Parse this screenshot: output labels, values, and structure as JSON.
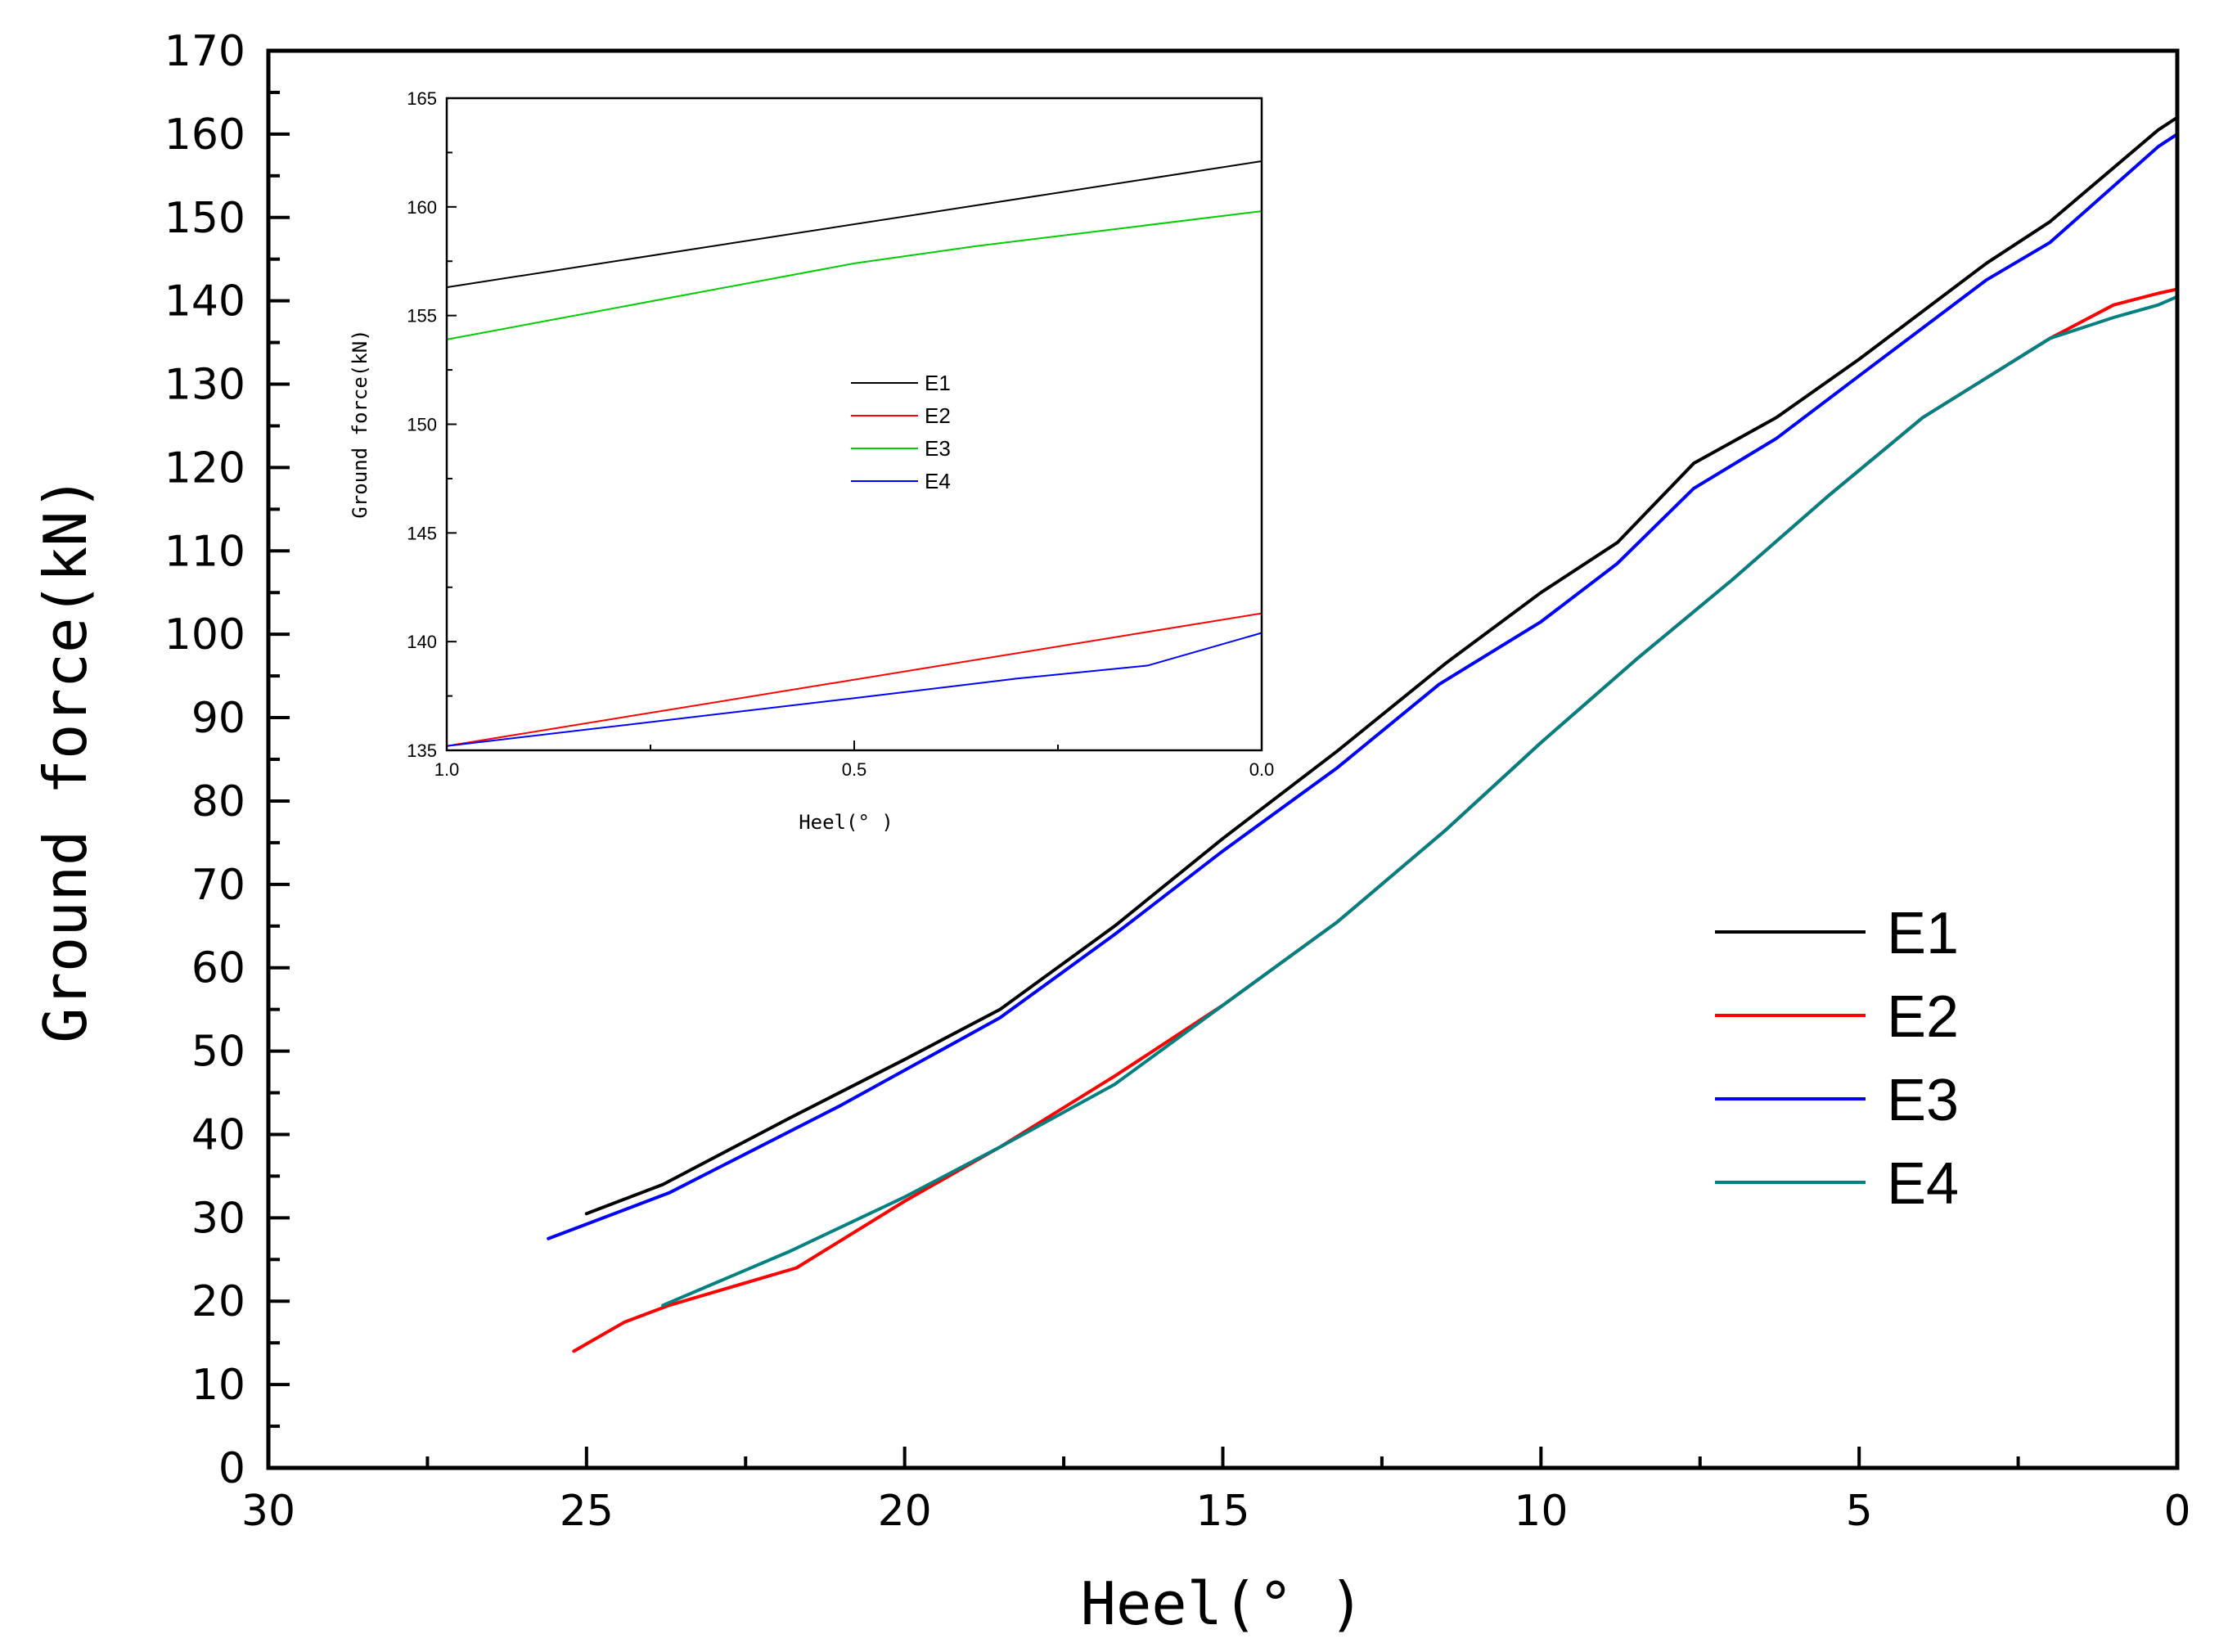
{
  "chart_data": [
    {
      "type": "line",
      "title": "",
      "xlabel": "Heel(° )",
      "ylabel": "Ground force(kN)",
      "xlim": [
        30,
        0
      ],
      "ylim": [
        0,
        170
      ],
      "xticks": [
        30,
        25,
        20,
        15,
        10,
        5,
        0
      ],
      "yticks": [
        0,
        10,
        20,
        30,
        40,
        50,
        60,
        70,
        80,
        90,
        100,
        110,
        120,
        130,
        140,
        150,
        160,
        170
      ],
      "legend_position": "right",
      "series": [
        {
          "name": "E1",
          "color": "#000000",
          "x": [
            25,
            23.8,
            21.8,
            20,
            18.5,
            16.7,
            15,
            13.2,
            11.5,
            10,
            8.8,
            7.6,
            6.3,
            5,
            3,
            2,
            0.3,
            0
          ],
          "y": [
            30.5,
            34,
            42,
            49,
            55,
            65,
            75.5,
            86,
            96.5,
            105,
            111,
            120.5,
            126,
            133,
            144.5,
            149.5,
            160.5,
            162
          ]
        },
        {
          "name": "E2",
          "color": "#ff0000",
          "x": [
            25.2,
            24.4,
            23.7,
            21.7,
            20,
            18.5,
            16.7,
            15,
            13.2,
            11.5,
            10,
            8.5,
            7,
            5.5,
            4,
            2,
            1,
            0.3,
            0
          ],
          "y": [
            14,
            17.5,
            19.5,
            24,
            32,
            38.5,
            47,
            55.5,
            65.5,
            76.5,
            87,
            97,
            106.5,
            116.5,
            126,
            135.5,
            139.5,
            140.9,
            141.4
          ]
        },
        {
          "name": "E3",
          "color": "#0000ff",
          "x": [
            25.6,
            23.7,
            21,
            18.5,
            16.7,
            15,
            13.2,
            11.6,
            10,
            8.8,
            7.6,
            6.3,
            5,
            3,
            2,
            0.3,
            0
          ],
          "y": [
            27.5,
            33,
            43.5,
            54,
            64,
            74,
            84,
            94,
            101.5,
            108.5,
            117.5,
            123.5,
            131,
            142.5,
            147,
            158.5,
            160
          ]
        },
        {
          "name": "E4",
          "color": "#008080",
          "x": [
            23.8,
            21.8,
            20,
            18.5,
            16.7,
            15,
            13.2,
            11.5,
            10,
            8.5,
            7,
            5.5,
            4,
            2,
            1,
            0.3,
            0
          ],
          "y": [
            19.5,
            26,
            32.5,
            38.5,
            46,
            55.5,
            65.5,
            76.5,
            87,
            97,
            106.5,
            116.5,
            126,
            135.5,
            138,
            139.5,
            140.5
          ]
        }
      ]
    },
    {
      "type": "line",
      "title": "",
      "xlabel": "Heel(° )",
      "ylabel": "Ground force(kN)",
      "xlim": [
        1.0,
        0.0
      ],
      "ylim": [
        135,
        165
      ],
      "xticks": [
        "1.0",
        "0.5",
        "0.0"
      ],
      "yticks": [
        135,
        140,
        145,
        150,
        155,
        160,
        165
      ],
      "legend_position": "center",
      "series": [
        {
          "name": "E1",
          "color": "#000000",
          "x": [
            1.0,
            0.0
          ],
          "y": [
            156.3,
            162.1
          ]
        },
        {
          "name": "E2",
          "color": "#ff0000",
          "x": [
            1.0,
            0.0
          ],
          "y": [
            135.2,
            141.3
          ]
        },
        {
          "name": "E3",
          "color": "#00cc00",
          "x": [
            1.0,
            0.5,
            0.35,
            0.0
          ],
          "y": [
            153.9,
            157.4,
            158.2,
            159.8
          ]
        },
        {
          "name": "E4",
          "color": "#0000ff",
          "x": [
            1.0,
            0.5,
            0.3,
            0.14,
            0.0
          ],
          "y": [
            135.2,
            137.4,
            138.3,
            138.9,
            140.4
          ]
        }
      ]
    }
  ]
}
